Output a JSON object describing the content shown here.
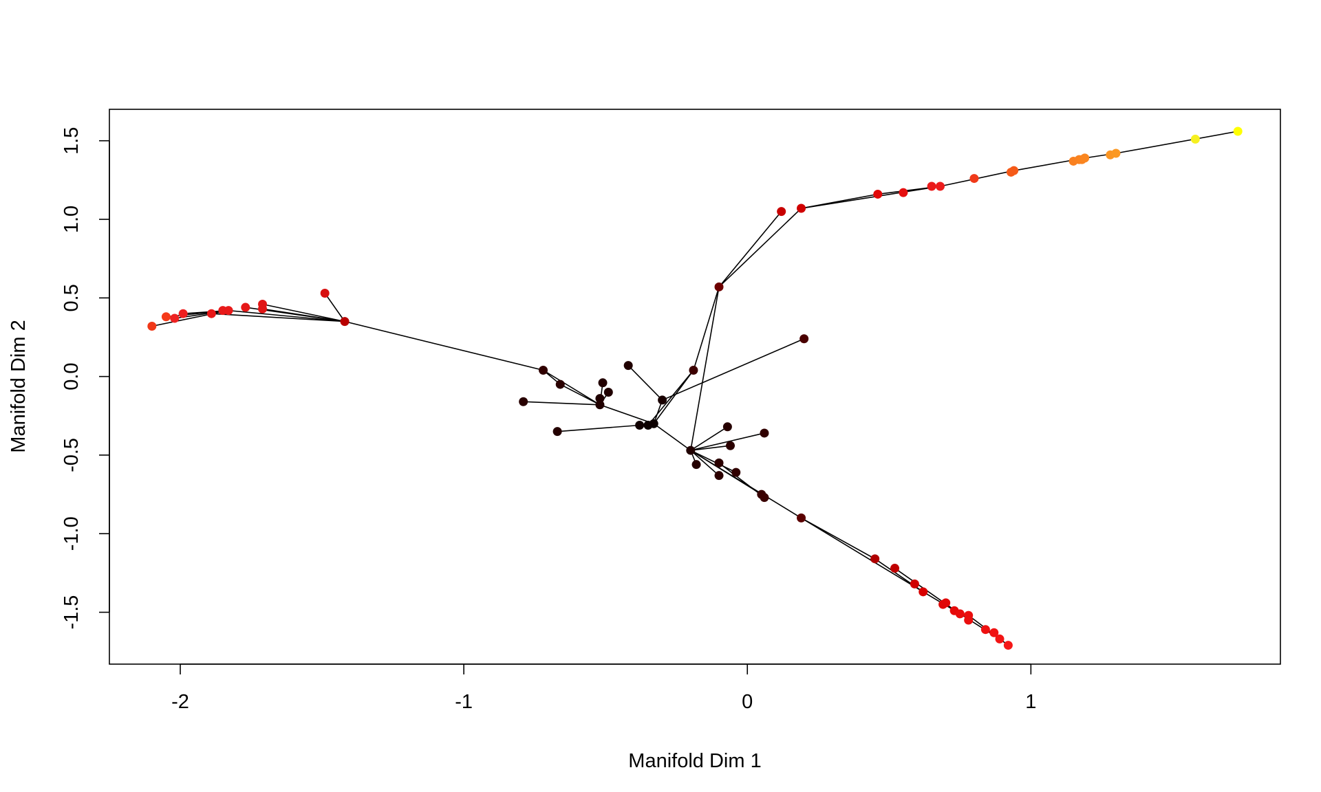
{
  "chart_data": {
    "type": "scatter",
    "xlabel": "Manifold Dim 1",
    "ylabel": "Manifold Dim 2",
    "xlim": [
      -2.25,
      1.88
    ],
    "ylim": [
      -1.83,
      1.7
    ],
    "x_ticks": [
      {
        "value": -2,
        "label": "-2"
      },
      {
        "value": -1,
        "label": "-1"
      },
      {
        "value": 0,
        "label": "0"
      },
      {
        "value": 1,
        "label": "1"
      }
    ],
    "y_ticks": [
      {
        "value": -1.5,
        "label": "-1.5"
      },
      {
        "value": -1.0,
        "label": "-1.0"
      },
      {
        "value": -0.5,
        "label": "-0.5"
      },
      {
        "value": 0.0,
        "label": "0.0"
      },
      {
        "value": 0.5,
        "label": "0.5"
      },
      {
        "value": 1.0,
        "label": "1.0"
      },
      {
        "value": 1.5,
        "label": "1.5"
      }
    ],
    "colorbar": {
      "x_start": -1.0,
      "x_end": -0.5,
      "y": -1.5,
      "colors": [
        "#000000",
        "#3a0000",
        "#900000",
        "#ff0000",
        "#ff8000",
        "#ffff00"
      ]
    },
    "points": [
      {
        "x": -2.1,
        "y": 0.32,
        "color": "#f03818"
      },
      {
        "x": -2.05,
        "y": 0.38,
        "color": "#f53a1a"
      },
      {
        "x": -2.02,
        "y": 0.37,
        "color": "#ee2222"
      },
      {
        "x": -1.99,
        "y": 0.4,
        "color": "#ee1f1f"
      },
      {
        "x": -1.89,
        "y": 0.4,
        "color": "#e81818"
      },
      {
        "x": -1.85,
        "y": 0.42,
        "color": "#e81a1a"
      },
      {
        "x": -1.83,
        "y": 0.42,
        "color": "#e81a1a"
      },
      {
        "x": -1.77,
        "y": 0.44,
        "color": "#e51818"
      },
      {
        "x": -1.71,
        "y": 0.46,
        "color": "#e01515"
      },
      {
        "x": -1.71,
        "y": 0.43,
        "color": "#e01515"
      },
      {
        "x": -1.49,
        "y": 0.53,
        "color": "#d81010"
      },
      {
        "x": -1.42,
        "y": 0.35,
        "color": "#b80000"
      },
      {
        "x": -0.72,
        "y": 0.04,
        "color": "#300000"
      },
      {
        "x": -0.66,
        "y": -0.05,
        "color": "#2a0000"
      },
      {
        "x": -0.42,
        "y": 0.07,
        "color": "#200000"
      },
      {
        "x": -0.51,
        "y": -0.04,
        "color": "#220000"
      },
      {
        "x": -0.49,
        "y": -0.1,
        "color": "#200000"
      },
      {
        "x": -0.52,
        "y": -0.14,
        "color": "#200000"
      },
      {
        "x": -0.52,
        "y": -0.18,
        "color": "#200000"
      },
      {
        "x": -0.79,
        "y": -0.16,
        "color": "#280000"
      },
      {
        "x": -0.67,
        "y": -0.35,
        "color": "#240000"
      },
      {
        "x": -0.38,
        "y": -0.31,
        "color": "#100000"
      },
      {
        "x": -0.35,
        "y": -0.31,
        "color": "#0c0000"
      },
      {
        "x": -0.33,
        "y": -0.3,
        "color": "#0c0000"
      },
      {
        "x": -0.3,
        "y": -0.15,
        "color": "#180000"
      },
      {
        "x": -0.19,
        "y": 0.04,
        "color": "#3c0000"
      },
      {
        "x": -0.1,
        "y": 0.57,
        "color": "#6e0000"
      },
      {
        "x": 0.12,
        "y": 1.05,
        "color": "#c80000"
      },
      {
        "x": 0.19,
        "y": 1.07,
        "color": "#d00000"
      },
      {
        "x": 0.2,
        "y": 0.24,
        "color": "#4a0000"
      },
      {
        "x": -0.2,
        "y": -0.47,
        "color": "#200000"
      },
      {
        "x": -0.18,
        "y": -0.56,
        "color": "#240000"
      },
      {
        "x": -0.07,
        "y": -0.32,
        "color": "#260000"
      },
      {
        "x": -0.06,
        "y": -0.44,
        "color": "#2a0000"
      },
      {
        "x": -0.1,
        "y": -0.55,
        "color": "#2a0000"
      },
      {
        "x": -0.1,
        "y": -0.63,
        "color": "#2c0000"
      },
      {
        "x": -0.04,
        "y": -0.61,
        "color": "#300000"
      },
      {
        "x": 0.06,
        "y": -0.36,
        "color": "#300000"
      },
      {
        "x": 0.05,
        "y": -0.75,
        "color": "#380000"
      },
      {
        "x": 0.06,
        "y": -0.77,
        "color": "#3a0000"
      },
      {
        "x": 0.19,
        "y": -0.9,
        "color": "#5a0000"
      },
      {
        "x": 0.45,
        "y": -1.16,
        "color": "#b00000"
      },
      {
        "x": 0.52,
        "y": -1.22,
        "color": "#c00000"
      },
      {
        "x": 0.59,
        "y": -1.32,
        "color": "#d00000"
      },
      {
        "x": 0.62,
        "y": -1.37,
        "color": "#d80000"
      },
      {
        "x": 0.69,
        "y": -1.45,
        "color": "#e00808"
      },
      {
        "x": 0.7,
        "y": -1.44,
        "color": "#e00808"
      },
      {
        "x": 0.73,
        "y": -1.49,
        "color": "#e60a0a"
      },
      {
        "x": 0.75,
        "y": -1.51,
        "color": "#e80c0c"
      },
      {
        "x": 0.78,
        "y": -1.55,
        "color": "#ea0e0e"
      },
      {
        "x": 0.78,
        "y": -1.52,
        "color": "#ea0e0e"
      },
      {
        "x": 0.84,
        "y": -1.61,
        "color": "#ee1010"
      },
      {
        "x": 0.87,
        "y": -1.63,
        "color": "#f01212"
      },
      {
        "x": 0.89,
        "y": -1.67,
        "color": "#f21414"
      },
      {
        "x": 0.92,
        "y": -1.71,
        "color": "#f51818"
      },
      {
        "x": 0.46,
        "y": 1.16,
        "color": "#e00808"
      },
      {
        "x": 0.55,
        "y": 1.17,
        "color": "#e51010"
      },
      {
        "x": 0.65,
        "y": 1.21,
        "color": "#ea1a1a"
      },
      {
        "x": 0.68,
        "y": 1.21,
        "color": "#ec1c1c"
      },
      {
        "x": 0.8,
        "y": 1.26,
        "color": "#f03a1a"
      },
      {
        "x": 0.93,
        "y": 1.3,
        "color": "#f55a18"
      },
      {
        "x": 0.94,
        "y": 1.31,
        "color": "#f55a18"
      },
      {
        "x": 1.15,
        "y": 1.37,
        "color": "#f98020"
      },
      {
        "x": 1.17,
        "y": 1.38,
        "color": "#f98220"
      },
      {
        "x": 1.18,
        "y": 1.38,
        "color": "#fa8420"
      },
      {
        "x": 1.19,
        "y": 1.39,
        "color": "#fa8620"
      },
      {
        "x": 1.28,
        "y": 1.41,
        "color": "#fb9522"
      },
      {
        "x": 1.3,
        "y": 1.42,
        "color": "#fb9822"
      },
      {
        "x": 1.58,
        "y": 1.51,
        "color": "#f6f020"
      },
      {
        "x": 1.73,
        "y": 1.56,
        "color": "#ffff00"
      }
    ],
    "edges": [
      [
        [
          -2.1,
          0.32
        ],
        [
          -1.83,
          0.42
        ]
      ],
      [
        [
          -2.05,
          0.38
        ],
        [
          -1.83,
          0.42
        ]
      ],
      [
        [
          -2.02,
          0.37
        ],
        [
          -1.83,
          0.42
        ]
      ],
      [
        [
          -1.99,
          0.4
        ],
        [
          -1.83,
          0.42
        ]
      ],
      [
        [
          -1.89,
          0.4
        ],
        [
          -1.83,
          0.42
        ]
      ],
      [
        [
          -1.85,
          0.42
        ],
        [
          -1.83,
          0.42
        ]
      ],
      [
        [
          -1.83,
          0.42
        ],
        [
          -1.42,
          0.35
        ]
      ],
      [
        [
          -1.77,
          0.44
        ],
        [
          -1.42,
          0.35
        ]
      ],
      [
        [
          -1.71,
          0.46
        ],
        [
          -1.42,
          0.35
        ]
      ],
      [
        [
          -1.71,
          0.43
        ],
        [
          -1.42,
          0.35
        ]
      ],
      [
        [
          -1.89,
          0.4
        ],
        [
          -1.42,
          0.35
        ]
      ],
      [
        [
          -1.49,
          0.53
        ],
        [
          -1.42,
          0.35
        ]
      ],
      [
        [
          -1.42,
          0.35
        ],
        [
          -0.72,
          0.04
        ]
      ],
      [
        [
          -0.72,
          0.04
        ],
        [
          -0.66,
          -0.05
        ]
      ],
      [
        [
          -0.66,
          -0.05
        ],
        [
          -0.52,
          -0.18
        ]
      ],
      [
        [
          -0.72,
          0.04
        ],
        [
          -0.52,
          -0.18
        ]
      ],
      [
        [
          -0.51,
          -0.04
        ],
        [
          -0.52,
          -0.18
        ]
      ],
      [
        [
          -0.49,
          -0.1
        ],
        [
          -0.52,
          -0.18
        ]
      ],
      [
        [
          -0.52,
          -0.14
        ],
        [
          -0.52,
          -0.18
        ]
      ],
      [
        [
          -0.79,
          -0.16
        ],
        [
          -0.52,
          -0.18
        ]
      ],
      [
        [
          -0.52,
          -0.18
        ],
        [
          -0.33,
          -0.3
        ]
      ],
      [
        [
          -0.67,
          -0.35
        ],
        [
          -0.38,
          -0.31
        ]
      ],
      [
        [
          -0.38,
          -0.31
        ],
        [
          -0.33,
          -0.3
        ]
      ],
      [
        [
          -0.35,
          -0.31
        ],
        [
          -0.33,
          -0.3
        ]
      ],
      [
        [
          -0.42,
          0.07
        ],
        [
          -0.3,
          -0.15
        ]
      ],
      [
        [
          -0.3,
          -0.15
        ],
        [
          -0.33,
          -0.3
        ]
      ],
      [
        [
          0.2,
          0.24
        ],
        [
          -0.3,
          -0.15
        ]
      ],
      [
        [
          -0.33,
          -0.3
        ],
        [
          -0.19,
          0.04
        ]
      ],
      [
        [
          -0.35,
          -0.31
        ],
        [
          -0.19,
          0.04
        ]
      ],
      [
        [
          -0.19,
          0.04
        ],
        [
          -0.1,
          0.57
        ]
      ],
      [
        [
          -0.2,
          -0.47
        ],
        [
          -0.1,
          0.57
        ]
      ],
      [
        [
          -0.1,
          0.57
        ],
        [
          0.12,
          1.05
        ]
      ],
      [
        [
          -0.1,
          0.57
        ],
        [
          0.19,
          1.07
        ]
      ],
      [
        [
          0.19,
          1.07
        ],
        [
          0.46,
          1.16
        ]
      ],
      [
        [
          0.46,
          1.16
        ],
        [
          0.68,
          1.21
        ]
      ],
      [
        [
          0.19,
          1.07
        ],
        [
          0.68,
          1.21
        ]
      ],
      [
        [
          0.68,
          1.21
        ],
        [
          0.94,
          1.31
        ]
      ],
      [
        [
          0.94,
          1.31
        ],
        [
          1.19,
          1.39
        ]
      ],
      [
        [
          1.19,
          1.39
        ],
        [
          1.3,
          1.42
        ]
      ],
      [
        [
          1.3,
          1.42
        ],
        [
          1.73,
          1.56
        ]
      ],
      [
        [
          -0.33,
          -0.3
        ],
        [
          -0.2,
          -0.47
        ]
      ],
      [
        [
          -0.2,
          -0.47
        ],
        [
          -0.07,
          -0.32
        ]
      ],
      [
        [
          -0.2,
          -0.47
        ],
        [
          -0.06,
          -0.44
        ]
      ],
      [
        [
          -0.2,
          -0.47
        ],
        [
          0.06,
          -0.36
        ]
      ],
      [
        [
          -0.2,
          -0.47
        ],
        [
          -0.18,
          -0.56
        ]
      ],
      [
        [
          -0.2,
          -0.47
        ],
        [
          -0.1,
          -0.63
        ]
      ],
      [
        [
          -0.2,
          -0.47
        ],
        [
          -0.04,
          -0.61
        ]
      ],
      [
        [
          -0.2,
          -0.47
        ],
        [
          0.05,
          -0.75
        ]
      ],
      [
        [
          -0.1,
          -0.55
        ],
        [
          0.06,
          -0.77
        ]
      ],
      [
        [
          -0.2,
          -0.47
        ],
        [
          0.19,
          -0.9
        ]
      ],
      [
        [
          0.19,
          -0.9
        ],
        [
          0.45,
          -1.16
        ]
      ],
      [
        [
          0.45,
          -1.16
        ],
        [
          0.62,
          -1.37
        ]
      ],
      [
        [
          0.19,
          -0.9
        ],
        [
          0.62,
          -1.37
        ]
      ],
      [
        [
          0.62,
          -1.37
        ],
        [
          0.75,
          -1.51
        ]
      ],
      [
        [
          0.52,
          -1.22
        ],
        [
          0.75,
          -1.51
        ]
      ],
      [
        [
          0.75,
          -1.51
        ],
        [
          0.89,
          -1.67
        ]
      ],
      [
        [
          0.78,
          -1.52
        ],
        [
          0.92,
          -1.71
        ]
      ]
    ]
  }
}
